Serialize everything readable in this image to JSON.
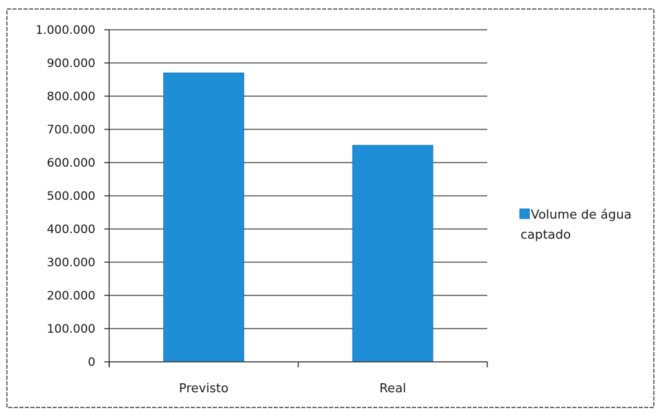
{
  "chart_data": {
    "type": "bar",
    "categories": [
      "Previsto",
      "Real"
    ],
    "series": [
      {
        "name": "Volume de água captado",
        "values": [
          870000,
          652000
        ]
      }
    ],
    "yticks": [
      "0",
      "100.000",
      "200.000",
      "300.000",
      "400.000",
      "500.000",
      "600.000",
      "700.000",
      "800.000",
      "900.000",
      "1.000.000"
    ],
    "ylim": [
      0,
      1000000
    ],
    "grid": true,
    "legend_position": "right",
    "legend_lines": [
      "Volume de água",
      "captado"
    ],
    "colors": {
      "bar": "#1e8fd6",
      "bar_edge": "#1677b8",
      "grid": "#555555",
      "axis": "#333333",
      "frame": "#444444"
    }
  }
}
